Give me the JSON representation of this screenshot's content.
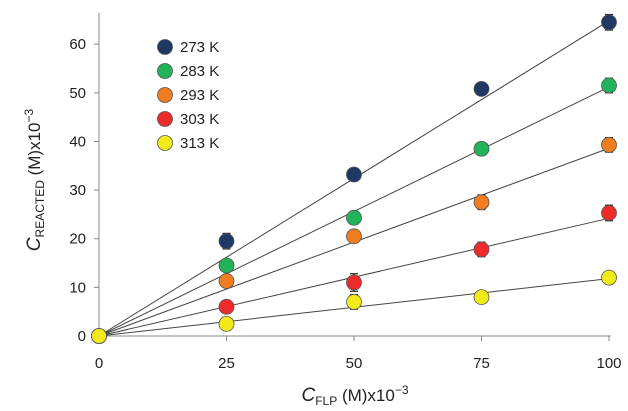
{
  "chart_data": {
    "type": "scatter",
    "title": "",
    "xlabel": {
      "italic": "C",
      "sub": "FLP",
      "rest": " (M)x10",
      "exp": "−3"
    },
    "ylabel": {
      "italic": "C",
      "sub": "REACTED",
      "rest": " (M)x10",
      "exp": "−3"
    },
    "xlim": [
      0,
      100
    ],
    "ylim": [
      0,
      66
    ],
    "x_ticks": [
      0,
      25,
      50,
      75,
      100
    ],
    "y_ticks": [
      0,
      10,
      20,
      30,
      40,
      50,
      60
    ],
    "grid": false,
    "legend_position": "top-left",
    "fit_lines": true,
    "series": [
      {
        "name": "273 K",
        "color": "#1f3864",
        "x": [
          0,
          25,
          50,
          75,
          100
        ],
        "y": [
          0,
          19.5,
          33.2,
          50.8,
          64.5
        ],
        "err": [
          0,
          1.6,
          1.0,
          1.2,
          1.6
        ],
        "fit_slope": 0.648
      },
      {
        "name": "283 K",
        "color": "#22b35a",
        "x": [
          0,
          25,
          50,
          75,
          100
        ],
        "y": [
          0,
          14.5,
          24.3,
          38.5,
          51.5
        ],
        "err": [
          0,
          1.2,
          1.2,
          1.0,
          1.5
        ],
        "fit_slope": 0.512
      },
      {
        "name": "293 K",
        "color": "#f07d1f",
        "x": [
          0,
          25,
          50,
          75,
          100
        ],
        "y": [
          0,
          11.3,
          20.5,
          27.5,
          39.3
        ],
        "err": [
          0,
          1.0,
          1.0,
          1.5,
          1.5
        ],
        "fit_slope": 0.386
      },
      {
        "name": "303 K",
        "color": "#ee2b2b",
        "x": [
          0,
          25,
          50,
          75,
          100
        ],
        "y": [
          0,
          6.0,
          11.0,
          17.8,
          25.3
        ],
        "err": [
          0,
          1.2,
          1.8,
          1.5,
          1.6
        ],
        "fit_slope": 0.242
      },
      {
        "name": "313 K",
        "color": "#f3ea1a",
        "x": [
          0,
          25,
          50,
          75,
          100
        ],
        "y": [
          0,
          2.5,
          7.0,
          8.0,
          12.0
        ],
        "err": [
          0,
          1.3,
          1.5,
          1.0,
          1.2
        ],
        "fit_slope": 0.118
      }
    ]
  }
}
